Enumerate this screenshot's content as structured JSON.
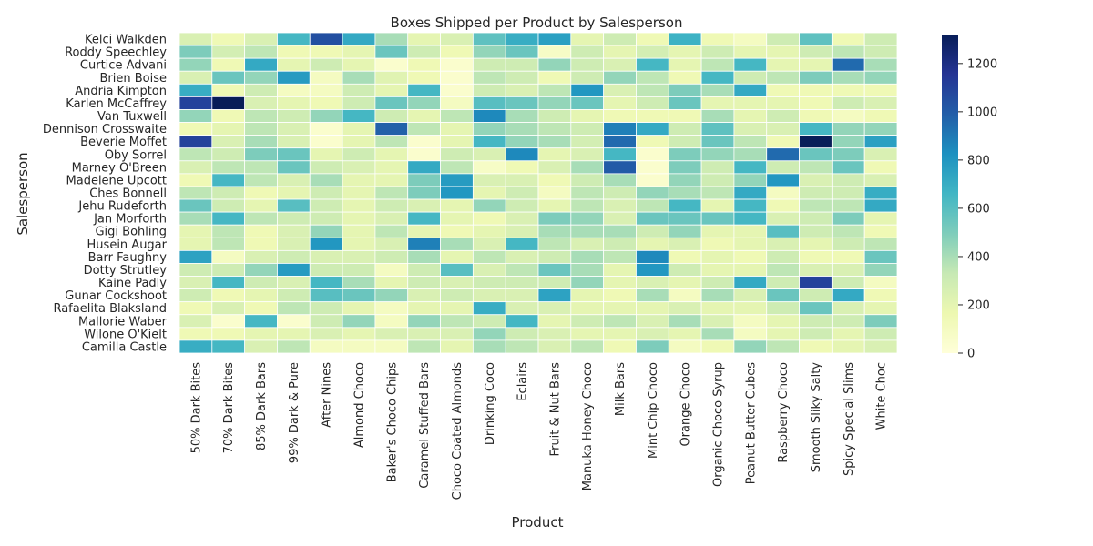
{
  "chart_data": {
    "type": "heatmap",
    "title": "Boxes Shipped per Product by Salesperson",
    "xlabel": "Product",
    "ylabel": "Salesperson",
    "colormap": "YlGnBu",
    "vmin": 0,
    "vmax": 1320,
    "colorbar_ticks": [
      0,
      200,
      400,
      600,
      800,
      1000,
      1200
    ],
    "salespeople": [
      "Kelci Walkden",
      "Roddy Speechley",
      "Curtice Advani",
      "Brien Boise",
      "Andria Kimpton",
      "Karlen McCaffrey",
      "Van Tuxwell",
      "Dennison Crosswaite",
      "Beverie Moffet",
      "Oby Sorrel",
      "Marney O'Breen",
      "Madelene Upcott",
      "Ches Bonnell",
      "Jehu Rudeforth",
      "Jan Morforth",
      "Gigi Bohling",
      "Husein Augar",
      "Barr Faughny",
      "Dotty Strutley",
      "Kaine Padly",
      "Gunar Cockshoot",
      "Rafaelita Blaksland",
      "Mallorie Waber",
      "Wilone O'Kielt",
      "Camilla Castle"
    ],
    "products": [
      "50% Dark Bites",
      "70% Dark Bites",
      "85% Dark Bars",
      "99% Dark & Pure",
      "After Nines",
      "Almond Choco",
      "Baker's Choco Chips",
      "Caramel Stuffed Bars",
      "Choco Coated Almonds",
      "Drinking Coco",
      "Eclairs",
      "Fruit & Nut Bars",
      "Manuka Honey Choco",
      "Milk Bars",
      "Mint Chip Choco",
      "Orange Choco",
      "Organic Choco Syrup",
      "Peanut Butter Cubes",
      "Raspberry Choco",
      "Smooth Sliky Salty",
      "Spicy Special Slims",
      "White Choc"
    ],
    "values": [
      [
        250,
        150,
        250,
        650,
        1050,
        720,
        400,
        200,
        250,
        580,
        700,
        760,
        200,
        300,
        150,
        680,
        150,
        100,
        300,
        580,
        150,
        300
      ],
      [
        500,
        280,
        350,
        150,
        150,
        200,
        550,
        300,
        150,
        450,
        550,
        80,
        300,
        200,
        280,
        200,
        300,
        200,
        200,
        300,
        350,
        300
      ],
      [
        450,
        150,
        720,
        200,
        300,
        200,
        50,
        150,
        50,
        300,
        300,
        450,
        300,
        250,
        650,
        200,
        350,
        650,
        200,
        200,
        950,
        400
      ],
      [
        250,
        550,
        450,
        780,
        100,
        400,
        220,
        150,
        50,
        350,
        300,
        150,
        300,
        450,
        350,
        150,
        650,
        300,
        350,
        500,
        400,
        450
      ],
      [
        700,
        150,
        300,
        100,
        100,
        300,
        200,
        650,
        50,
        300,
        250,
        350,
        800,
        250,
        350,
        500,
        400,
        720,
        150,
        150,
        150,
        150
      ],
      [
        1100,
        1320,
        250,
        200,
        150,
        300,
        550,
        450,
        100,
        600,
        550,
        450,
        550,
        200,
        300,
        550,
        200,
        200,
        200,
        150,
        300,
        250
      ],
      [
        450,
        150,
        350,
        300,
        450,
        650,
        300,
        200,
        350,
        850,
        400,
        300,
        200,
        150,
        150,
        150,
        400,
        200,
        300,
        150,
        100,
        150
      ],
      [
        150,
        200,
        350,
        250,
        50,
        200,
        980,
        350,
        200,
        450,
        400,
        350,
        300,
        880,
        720,
        300,
        580,
        250,
        250,
        650,
        450,
        450
      ],
      [
        1100,
        250,
        400,
        250,
        50,
        200,
        350,
        50,
        200,
        650,
        450,
        400,
        280,
        950,
        150,
        300,
        550,
        350,
        150,
        1320,
        450,
        760
      ],
      [
        350,
        300,
        500,
        550,
        200,
        300,
        200,
        50,
        300,
        250,
        850,
        200,
        250,
        650,
        50,
        500,
        450,
        400,
        950,
        550,
        500,
        250
      ],
      [
        250,
        350,
        350,
        550,
        300,
        250,
        200,
        720,
        350,
        80,
        150,
        250,
        400,
        1000,
        50,
        500,
        300,
        650,
        300,
        350,
        550,
        150
      ],
      [
        150,
        650,
        350,
        250,
        400,
        200,
        200,
        500,
        780,
        250,
        250,
        150,
        300,
        400,
        50,
        450,
        300,
        450,
        800,
        250,
        300,
        250
      ],
      [
        350,
        300,
        150,
        200,
        300,
        200,
        350,
        500,
        800,
        200,
        300,
        100,
        350,
        300,
        450,
        400,
        350,
        720,
        100,
        300,
        300,
        700
      ],
      [
        550,
        300,
        200,
        600,
        300,
        200,
        300,
        250,
        200,
        450,
        300,
        200,
        350,
        250,
        350,
        650,
        200,
        650,
        150,
        350,
        350,
        720
      ],
      [
        400,
        650,
        350,
        300,
        300,
        200,
        250,
        650,
        200,
        150,
        250,
        500,
        450,
        250,
        550,
        550,
        550,
        650,
        250,
        300,
        500,
        200
      ],
      [
        200,
        350,
        150,
        250,
        450,
        200,
        350,
        200,
        150,
        200,
        250,
        400,
        400,
        400,
        300,
        450,
        200,
        200,
        600,
        300,
        350,
        150
      ],
      [
        200,
        350,
        150,
        250,
        800,
        200,
        250,
        880,
        400,
        250,
        650,
        350,
        250,
        300,
        200,
        250,
        150,
        200,
        250,
        200,
        300,
        350
      ],
      [
        750,
        100,
        250,
        300,
        250,
        250,
        300,
        400,
        200,
        350,
        250,
        300,
        400,
        350,
        850,
        150,
        200,
        150,
        300,
        150,
        150,
        550
      ],
      [
        300,
        300,
        450,
        780,
        300,
        300,
        100,
        300,
        600,
        250,
        350,
        550,
        400,
        200,
        800,
        300,
        200,
        200,
        350,
        250,
        250,
        450
      ],
      [
        250,
        650,
        300,
        250,
        650,
        400,
        200,
        300,
        250,
        300,
        300,
        300,
        450,
        200,
        250,
        200,
        300,
        720,
        300,
        1100,
        300,
        100
      ],
      [
        300,
        150,
        200,
        300,
        600,
        550,
        450,
        250,
        300,
        250,
        250,
        750,
        200,
        150,
        400,
        100,
        400,
        250,
        550,
        300,
        720,
        150
      ],
      [
        150,
        250,
        150,
        350,
        300,
        200,
        100,
        200,
        200,
        700,
        250,
        250,
        200,
        200,
        200,
        250,
        200,
        200,
        300,
        550,
        250,
        200
      ],
      [
        250,
        50,
        650,
        50,
        300,
        450,
        100,
        450,
        350,
        300,
        650,
        200,
        300,
        350,
        250,
        400,
        250,
        100,
        200,
        300,
        300,
        500
      ],
      [
        150,
        150,
        200,
        200,
        250,
        200,
        250,
        250,
        250,
        450,
        300,
        250,
        200,
        200,
        250,
        200,
        400,
        100,
        200,
        300,
        200,
        300
      ],
      [
        700,
        650,
        250,
        350,
        100,
        100,
        100,
        350,
        200,
        400,
        350,
        250,
        350,
        150,
        500,
        100,
        150,
        450,
        350,
        150,
        200,
        250
      ]
    ]
  }
}
